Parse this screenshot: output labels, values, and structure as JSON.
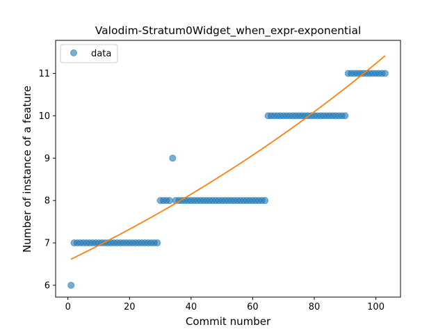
{
  "chart_data": {
    "type": "scatter",
    "title": "Valodim-Stratum0Widget_when_expr-exponential",
    "xlabel": "Commit number",
    "ylabel": "Number of instance of a feature",
    "xlim": [
      -4,
      108
    ],
    "ylim": [
      5.72,
      11.78
    ],
    "xticks": [
      0,
      20,
      40,
      60,
      80,
      100
    ],
    "yticks": [
      6,
      7,
      8,
      9,
      10,
      11
    ],
    "grid": false,
    "legend": {
      "placement": "upper-left",
      "entries": [
        "data"
      ]
    },
    "series": [
      {
        "name": "data",
        "kind": "scatter",
        "color": "#1f77b4",
        "points": [
          [
            1,
            6
          ],
          [
            2,
            7
          ],
          [
            3,
            7
          ],
          [
            4,
            7
          ],
          [
            5,
            7
          ],
          [
            6,
            7
          ],
          [
            7,
            7
          ],
          [
            8,
            7
          ],
          [
            9,
            7
          ],
          [
            10,
            7
          ],
          [
            11,
            7
          ],
          [
            12,
            7
          ],
          [
            13,
            7
          ],
          [
            14,
            7
          ],
          [
            15,
            7
          ],
          [
            16,
            7
          ],
          [
            17,
            7
          ],
          [
            18,
            7
          ],
          [
            19,
            7
          ],
          [
            20,
            7
          ],
          [
            21,
            7
          ],
          [
            22,
            7
          ],
          [
            23,
            7
          ],
          [
            24,
            7
          ],
          [
            25,
            7
          ],
          [
            26,
            7
          ],
          [
            27,
            7
          ],
          [
            28,
            7
          ],
          [
            29,
            7
          ],
          [
            30,
            8
          ],
          [
            31,
            8
          ],
          [
            32,
            8
          ],
          [
            33,
            8
          ],
          [
            34,
            9
          ],
          [
            35,
            8
          ],
          [
            36,
            8
          ],
          [
            37,
            8
          ],
          [
            38,
            8
          ],
          [
            39,
            8
          ],
          [
            40,
            8
          ],
          [
            41,
            8
          ],
          [
            42,
            8
          ],
          [
            43,
            8
          ],
          [
            44,
            8
          ],
          [
            45,
            8
          ],
          [
            46,
            8
          ],
          [
            47,
            8
          ],
          [
            48,
            8
          ],
          [
            49,
            8
          ],
          [
            50,
            8
          ],
          [
            51,
            8
          ],
          [
            52,
            8
          ],
          [
            53,
            8
          ],
          [
            54,
            8
          ],
          [
            55,
            8
          ],
          [
            56,
            8
          ],
          [
            57,
            8
          ],
          [
            58,
            8
          ],
          [
            59,
            8
          ],
          [
            60,
            8
          ],
          [
            61,
            8
          ],
          [
            62,
            8
          ],
          [
            63,
            8
          ],
          [
            64,
            8
          ],
          [
            65,
            10
          ],
          [
            66,
            10
          ],
          [
            67,
            10
          ],
          [
            68,
            10
          ],
          [
            69,
            10
          ],
          [
            70,
            10
          ],
          [
            71,
            10
          ],
          [
            72,
            10
          ],
          [
            73,
            10
          ],
          [
            74,
            10
          ],
          [
            75,
            10
          ],
          [
            76,
            10
          ],
          [
            77,
            10
          ],
          [
            78,
            10
          ],
          [
            79,
            10
          ],
          [
            80,
            10
          ],
          [
            81,
            10
          ],
          [
            82,
            10
          ],
          [
            83,
            10
          ],
          [
            84,
            10
          ],
          [
            85,
            10
          ],
          [
            86,
            10
          ],
          [
            87,
            10
          ],
          [
            88,
            10
          ],
          [
            89,
            10
          ],
          [
            90,
            10
          ],
          [
            91,
            11
          ],
          [
            92,
            11
          ],
          [
            93,
            11
          ],
          [
            94,
            11
          ],
          [
            95,
            11
          ],
          [
            96,
            11
          ],
          [
            97,
            11
          ],
          [
            98,
            11
          ],
          [
            99,
            11
          ],
          [
            100,
            11
          ],
          [
            101,
            11
          ],
          [
            102,
            11
          ],
          [
            103,
            11
          ]
        ]
      },
      {
        "kind": "line",
        "color": "#ff7f0e",
        "function": "exponential",
        "a": 6.58,
        "b": 0.00535,
        "x_range": [
          1,
          103
        ]
      }
    ]
  }
}
